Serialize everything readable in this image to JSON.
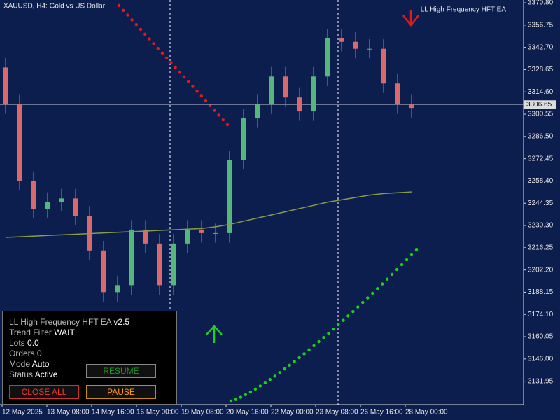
{
  "chart_data": {
    "type": "candlestick",
    "title": "XAUUSD, H4:  Gold vs US Dollar",
    "indicator_label": "LL High Frequency HFT EA",
    "up_color": "#56b77a",
    "down_color": "#d9696b",
    "open": [
      3330.0,
      3306.7,
      3258.4,
      3240.9,
      3245.2,
      3247.4,
      3236.5,
      3214.5,
      3188.2,
      3192.6,
      3227.7,
      3218.9,
      3192.6,
      3218.9,
      3227.7,
      3225.5,
      3225.5,
      3271.6,
      3297.9,
      3306.7,
      3324.3,
      3311.1,
      3302.3,
      3324.3,
      3348.4,
      3346.2,
      3341.8,
      3341.8,
      3319.9,
      3306.7
    ],
    "high": [
      3336.0,
      3312.7,
      3264.4,
      3251.2,
      3253.4,
      3253.4,
      3242.5,
      3220.5,
      3198.6,
      3233.7,
      3233.7,
      3224.9,
      3224.9,
      3233.7,
      3233.7,
      3231.5,
      3277.6,
      3303.9,
      3312.7,
      3330.3,
      3330.3,
      3317.1,
      3330.3,
      3354.4,
      3354.4,
      3352.2,
      3347.8,
      3347.8,
      3325.9,
      3312.7
    ],
    "low": [
      3300.7,
      3252.4,
      3234.9,
      3234.9,
      3239.2,
      3230.5,
      3208.5,
      3182.2,
      3182.2,
      3186.6,
      3212.9,
      3186.6,
      3186.6,
      3212.9,
      3219.5,
      3219.5,
      3219.5,
      3265.6,
      3291.9,
      3300.7,
      3305.1,
      3296.3,
      3296.3,
      3318.3,
      3340.2,
      3335.8,
      3335.8,
      3313.9,
      3300.7,
      3298.5
    ],
    "close": [
      3306.7,
      3258.4,
      3240.9,
      3245.2,
      3247.4,
      3236.5,
      3214.5,
      3188.2,
      3192.6,
      3227.7,
      3218.9,
      3192.6,
      3218.9,
      3227.7,
      3225.5,
      3225.5,
      3271.6,
      3297.9,
      3306.7,
      3324.3,
      3311.1,
      3302.3,
      3324.3,
      3348.4,
      3346.2,
      3341.8,
      3341.8,
      3319.9,
      3306.7,
      3304.5
    ],
    "ma": {
      "color": "#8a9a4a",
      "values": [
        3222.8,
        3223.2,
        3223.6,
        3224.0,
        3224.4,
        3224.8,
        3225.2,
        3225.6,
        3226.0,
        3226.4,
        3226.8,
        3227.2,
        3227.6,
        3228.0,
        3228.4,
        3229.5,
        3231.0,
        3233.0,
        3235.0,
        3237.0,
        3239.0,
        3241.0,
        3243.0,
        3245.0,
        3246.5,
        3248.0,
        3249.5,
        3250.5,
        3251.0,
        3251.5
      ]
    },
    "current_price": {
      "value": 3306.65,
      "label": "3306.65"
    },
    "x_labels": [
      "12 May 2025",
      "13 May 08:00",
      "14 May 16:00",
      "16 May 00:00",
      "19 May 08:00",
      "20 May 16:00",
      "22 May 00:00",
      "23 May 08:00",
      "26 May 16:00",
      "28 May 00:00"
    ],
    "ylim": [
      3117.2,
      3372.6
    ],
    "yticks": [
      {
        "value": 3370.8,
        "label": "3370.80"
      },
      {
        "value": 3356.75,
        "label": "3356.75"
      },
      {
        "value": 3342.7,
        "label": "3342.70"
      },
      {
        "value": 3328.65,
        "label": "3328.65"
      },
      {
        "value": 3314.6,
        "label": "3314.60"
      },
      {
        "value": 3300.55,
        "label": "3300.55"
      },
      {
        "value": 3286.5,
        "label": "3286.50"
      },
      {
        "value": 3272.45,
        "label": "3272.45"
      },
      {
        "value": 3258.4,
        "label": "3258.40"
      },
      {
        "value": 3244.35,
        "label": "3244.35"
      },
      {
        "value": 3230.3,
        "label": "3230.30"
      },
      {
        "value": 3216.25,
        "label": "3216.25"
      },
      {
        "value": 3202.2,
        "label": "3202.20"
      },
      {
        "value": 3188.15,
        "label": "3188.15"
      },
      {
        "value": 3174.1,
        "label": "3174.10"
      },
      {
        "value": 3160.05,
        "label": "3160.05"
      },
      {
        "value": 3146.0,
        "label": "3146.00"
      },
      {
        "value": 3131.95,
        "label": "3131.95"
      }
    ]
  },
  "panel": {
    "title": "LL High Frequency HFT EA",
    "version": "v2.5",
    "rows": [
      [
        "Trend Filter",
        "WAIT"
      ],
      [
        "Lots",
        "0.0"
      ],
      [
        "Orders",
        "0"
      ],
      [
        "Mode",
        "Auto"
      ],
      [
        "Status",
        "Active"
      ]
    ],
    "buttons": {
      "resume": "RESUME",
      "close_all": "CLOSE ALL",
      "pause": "PAUSE"
    }
  }
}
